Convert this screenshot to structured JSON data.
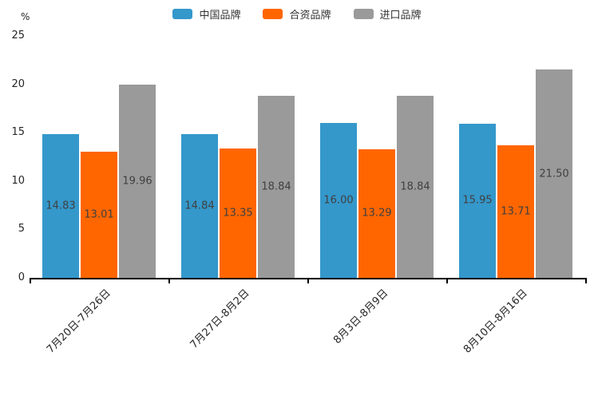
{
  "chart_data": {
    "type": "bar",
    "title": "",
    "ylabel": "%",
    "xlabel": "",
    "categories": [
      "7月20日-7月26日",
      "7月27日-8月2日",
      "8月3日-8月9日",
      "8月10日-8月16日"
    ],
    "series": [
      {
        "name": "中国品牌",
        "color": "#3498cb",
        "values": [
          14.83,
          14.84,
          16.0,
          15.95
        ]
      },
      {
        "name": "合资品牌",
        "color": "#ff6600",
        "values": [
          13.01,
          13.35,
          13.29,
          13.71
        ]
      },
      {
        "name": "进口品牌",
        "color": "#9a9a9a",
        "values": [
          19.96,
          18.84,
          18.84,
          21.5
        ]
      }
    ],
    "value_label_format": "2-decimals",
    "value_label_position": "inside-center",
    "yticks": [
      0,
      5,
      10,
      15,
      20,
      25
    ],
    "ylim": [
      0,
      25
    ],
    "xtick_rotation_deg": 45,
    "grid": false,
    "legend_position": "top-center",
    "colors": {
      "axis_line": "#000000",
      "tick_text": "#262626",
      "value_label_text": "#404040",
      "legend_text": "#333333",
      "background": "#ffffff"
    }
  }
}
